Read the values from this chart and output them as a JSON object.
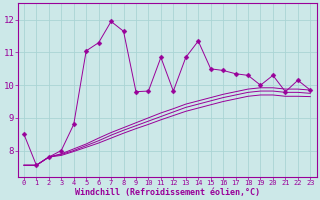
{
  "x": [
    0,
    1,
    2,
    3,
    4,
    5,
    6,
    7,
    8,
    9,
    10,
    11,
    12,
    13,
    14,
    15,
    16,
    17,
    18,
    19,
    20,
    21,
    22,
    23
  ],
  "main_line": [
    8.5,
    7.55,
    7.8,
    8.0,
    8.8,
    11.05,
    11.3,
    11.95,
    11.65,
    9.8,
    9.82,
    10.85,
    9.82,
    10.85,
    11.35,
    10.5,
    10.45,
    10.35,
    10.3,
    10.0,
    10.3,
    9.8,
    10.15,
    9.85
  ],
  "trend1": [
    7.55,
    7.55,
    7.8,
    7.9,
    8.05,
    8.2,
    8.38,
    8.55,
    8.7,
    8.85,
    9.0,
    9.15,
    9.28,
    9.42,
    9.52,
    9.62,
    9.72,
    9.8,
    9.88,
    9.92,
    9.92,
    9.88,
    9.88,
    9.85
  ],
  "trend2": [
    7.55,
    7.55,
    7.8,
    7.88,
    8.0,
    8.15,
    8.3,
    8.47,
    8.62,
    8.76,
    8.9,
    9.04,
    9.18,
    9.32,
    9.42,
    9.52,
    9.62,
    9.7,
    9.78,
    9.82,
    9.82,
    9.78,
    9.78,
    9.75
  ],
  "trend3": [
    7.55,
    7.55,
    7.8,
    7.85,
    7.97,
    8.1,
    8.23,
    8.38,
    8.53,
    8.67,
    8.8,
    8.94,
    9.07,
    9.2,
    9.3,
    9.4,
    9.5,
    9.58,
    9.66,
    9.7,
    9.7,
    9.66,
    9.66,
    9.65
  ],
  "line_color": "#990099",
  "bg_color": "#cce8e8",
  "grid_color": "#aad4d4",
  "xlabel": "Windchill (Refroidissement éolien,°C)",
  "ylabel_ticks": [
    8,
    9,
    10,
    11,
    12
  ],
  "xlim": [
    -0.5,
    23.5
  ],
  "ylim": [
    7.2,
    12.5
  ]
}
